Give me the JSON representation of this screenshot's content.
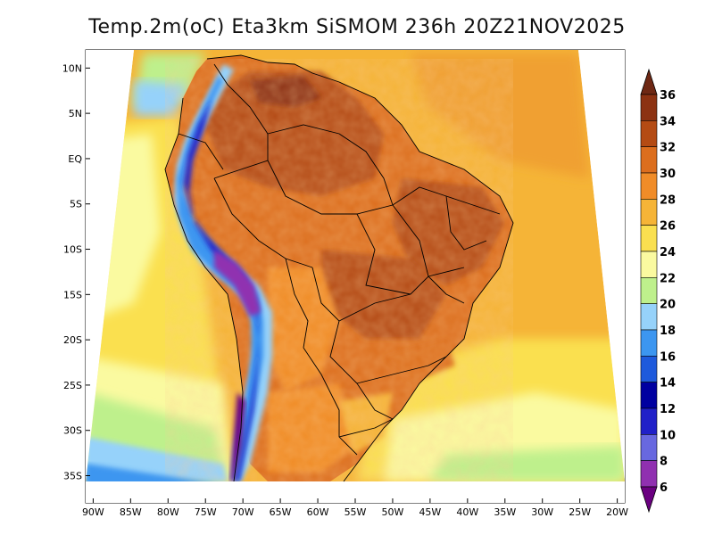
{
  "title": "Temp.2m(oC) Eta3km SiSMOM 236h 20Z21NOV2025",
  "map": {
    "lat_labels": [
      "10N",
      "5N",
      "EQ",
      "5S",
      "10S",
      "15S",
      "20S",
      "25S",
      "30S",
      "35S"
    ],
    "lat_values": [
      10,
      5,
      0,
      -5,
      -10,
      -15,
      -20,
      -25,
      -30,
      -35
    ],
    "lon_labels": [
      "90W",
      "85W",
      "80W",
      "75W",
      "70W",
      "65W",
      "60W",
      "55W",
      "50W",
      "45W",
      "40W",
      "35W",
      "30W",
      "25W",
      "20W"
    ],
    "lon_values": [
      -90,
      -85,
      -80,
      -75,
      -70,
      -65,
      -60,
      -55,
      -50,
      -45,
      -40,
      -35,
      -30,
      -25,
      -20
    ],
    "lat_range": [
      -38,
      12
    ],
    "lon_range": [
      -91,
      -19
    ]
  },
  "colorbar": {
    "labels": [
      "6",
      "8",
      "10",
      "12",
      "14",
      "16",
      "18",
      "20",
      "22",
      "24",
      "26",
      "28",
      "30",
      "32",
      "34",
      "36"
    ],
    "colors": [
      "#6a0080",
      "#9030b0",
      "#6868e0",
      "#2020c8",
      "#0000a0",
      "#1e5adc",
      "#3c96f0",
      "#96d2fa",
      "#bef08c",
      "#fafaa0",
      "#fae050",
      "#f5b437",
      "#f08c28",
      "#dc6e1e",
      "#b44b14",
      "#8c3212",
      "#6e2814"
    ]
  }
}
